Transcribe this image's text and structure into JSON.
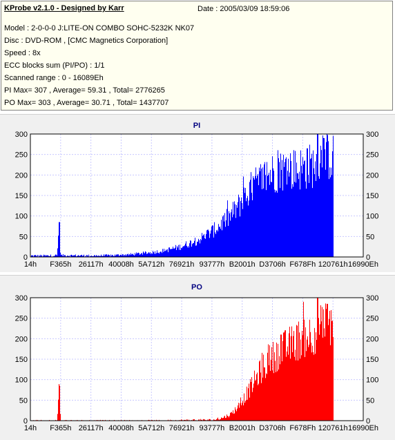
{
  "header": {
    "title": "KProbe v2.1.0 - Designed by Karr",
    "date": "Date : 2005/03/09 18:59:06",
    "lines": [
      "Model : 2-0-0-0 J:LITE-ON COMBO SOHC-5232K NK07",
      "Disc : DVD-ROM ,  [CMC Magnetics Corporation]",
      "Speed : 8x",
      "ECC blocks sum (PI/PO) : 1/1",
      "Scanned range : 0 - 16089Eh",
      "PI Max= 307 , Average= 59.31 , Total= 2776265",
      "PO Max= 303 , Average= 30.71 , Total= 1437707"
    ]
  },
  "chart_data": [
    {
      "type": "bar",
      "title": "PI",
      "color": "#0000ff",
      "ylim": [
        0,
        300
      ],
      "yticks": [
        "0",
        "50",
        "100",
        "150",
        "200",
        "250",
        "300"
      ],
      "xticks": [
        "14h",
        "F365h",
        "26117h",
        "40008h",
        "5A712h",
        "76921h",
        "93777h",
        "B2001h",
        "D3706h",
        "F678Fh",
        "120761h",
        "16990Eh"
      ],
      "scanned_end_fraction": 0.91,
      "profile": [
        [
          0.0,
          3
        ],
        [
          0.05,
          3
        ],
        [
          0.08,
          4
        ],
        [
          0.085,
          85
        ],
        [
          0.09,
          4
        ],
        [
          0.2,
          3
        ],
        [
          0.25,
          4
        ],
        [
          0.3,
          6
        ],
        [
          0.35,
          10
        ],
        [
          0.4,
          15
        ],
        [
          0.45,
          25
        ],
        [
          0.5,
          40
        ],
        [
          0.55,
          65
        ],
        [
          0.6,
          100
        ],
        [
          0.63,
          130
        ],
        [
          0.66,
          165
        ],
        [
          0.7,
          195
        ],
        [
          0.74,
          210
        ],
        [
          0.78,
          214
        ],
        [
          0.82,
          216
        ],
        [
          0.85,
          225
        ],
        [
          0.87,
          240
        ],
        [
          0.9,
          248
        ],
        [
          0.91,
          240
        ]
      ],
      "spikes": [
        [
          0.085,
          85
        ],
        [
          0.86,
          307
        ],
        [
          0.88,
          290
        ],
        [
          0.83,
          265
        ]
      ],
      "max": 307
    },
    {
      "type": "bar",
      "title": "PO",
      "color": "#ff0000",
      "ylim": [
        0,
        300
      ],
      "yticks": [
        "0",
        "50",
        "100",
        "150",
        "200",
        "250",
        "300"
      ],
      "xticks": [
        "14h",
        "F365h",
        "26117h",
        "40008h",
        "5A712h",
        "76921h",
        "93777h",
        "B2001h",
        "D3706h",
        "F678Fh",
        "120761h",
        "16990Eh"
      ],
      "scanned_end_fraction": 0.91,
      "profile": [
        [
          0.0,
          0
        ],
        [
          0.08,
          0
        ],
        [
          0.085,
          85
        ],
        [
          0.09,
          0
        ],
        [
          0.4,
          0
        ],
        [
          0.45,
          1
        ],
        [
          0.55,
          2
        ],
        [
          0.57,
          5
        ],
        [
          0.6,
          15
        ],
        [
          0.63,
          40
        ],
        [
          0.66,
          80
        ],
        [
          0.69,
          120
        ],
        [
          0.72,
          150
        ],
        [
          0.76,
          175
        ],
        [
          0.8,
          195
        ],
        [
          0.84,
          210
        ],
        [
          0.87,
          225
        ],
        [
          0.9,
          240
        ],
        [
          0.91,
          235
        ]
      ],
      "spikes": [
        [
          0.085,
          85
        ],
        [
          0.86,
          303
        ],
        [
          0.89,
          285
        ],
        [
          0.75,
          210
        ]
      ],
      "max": 303
    }
  ]
}
